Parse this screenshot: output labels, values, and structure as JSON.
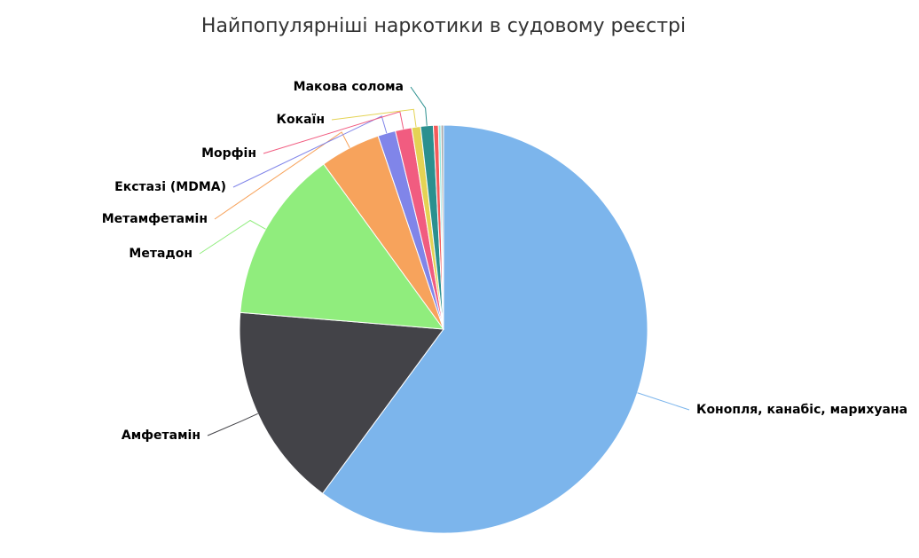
{
  "chart_data": {
    "type": "pie",
    "title": "Найпопулярніші наркотики в судовому реєстрі",
    "categories": [
      "Конопля, канабіс, марихуана",
      "Амфетамін",
      "Метадон",
      "Метамфетамін",
      "Екстазі (MDMA)",
      "Морфін",
      "Кокаїн",
      "Макова солома",
      null,
      null,
      null
    ],
    "values": [
      60.1,
      16.2,
      13.7,
      4.8,
      1.4,
      1.3,
      0.7,
      1.0,
      0.4,
      0.2,
      0.2
    ],
    "colors": [
      "#7cb5ec",
      "#434348",
      "#90ed7d",
      "#f7a35c",
      "#8085e9",
      "#f15c80",
      "#e4d354",
      "#2b908f",
      "#f45b5b",
      "#91e8e1",
      "#aaaaaa"
    ]
  }
}
